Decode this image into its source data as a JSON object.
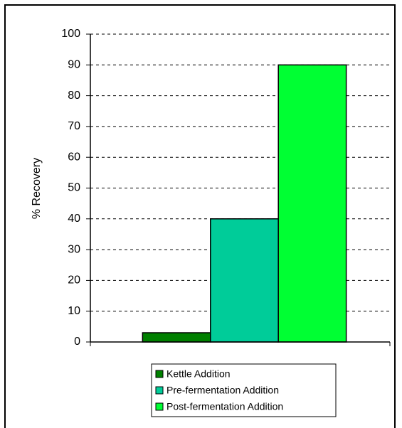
{
  "chart_data": {
    "type": "bar",
    "y_label": "% Recovery",
    "categories": [
      null
    ],
    "series": [
      {
        "name": "Kettle Addition",
        "color": "#008000",
        "values": [
          3
        ]
      },
      {
        "name": "Pre-fermentation Addition",
        "color": "#00cc99",
        "values": [
          40
        ]
      },
      {
        "name": "Post-fermentation Addition",
        "color": "#00ff33",
        "values": [
          90
        ]
      }
    ],
    "ylim": [
      0,
      100
    ],
    "yticks": [
      0,
      10,
      20,
      30,
      40,
      50,
      60,
      70,
      80,
      90,
      100
    ],
    "grid": true,
    "legend": "bottom"
  }
}
